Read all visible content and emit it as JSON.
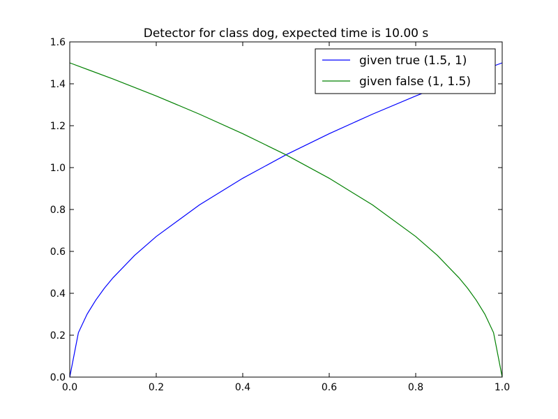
{
  "chart_data": {
    "type": "line",
    "title": "Detector for class dog, expected time is 10.00 s",
    "xlabel": "",
    "ylabel": "",
    "xlim": [
      0.0,
      1.0
    ],
    "ylim": [
      0.0,
      1.6
    ],
    "x_ticks": [
      "0.0",
      "0.2",
      "0.4",
      "0.6",
      "0.8",
      "1.0"
    ],
    "y_ticks": [
      "0.0",
      "0.2",
      "0.4",
      "0.6",
      "0.8",
      "1.0",
      "1.2",
      "1.4",
      "1.6"
    ],
    "grid": false,
    "legend_position": "top-right",
    "series": [
      {
        "name": "given true (1.5, 1)",
        "color": "#0000ff",
        "x": [
          0.0,
          0.02,
          0.04,
          0.06,
          0.08,
          0.1,
          0.15,
          0.2,
          0.3,
          0.4,
          0.5,
          0.6,
          0.7,
          0.8,
          0.9,
          1.0
        ],
        "y": [
          0.0,
          0.212,
          0.3,
          0.367,
          0.424,
          0.474,
          0.581,
          0.671,
          0.822,
          0.949,
          1.061,
          1.162,
          1.255,
          1.342,
          1.423,
          1.5
        ]
      },
      {
        "name": "given false (1, 1.5)",
        "color": "#008000",
        "x": [
          0.0,
          0.1,
          0.2,
          0.3,
          0.4,
          0.5,
          0.6,
          0.7,
          0.8,
          0.85,
          0.9,
          0.92,
          0.94,
          0.96,
          0.98,
          1.0
        ],
        "y": [
          1.5,
          1.423,
          1.342,
          1.255,
          1.162,
          1.061,
          0.949,
          0.822,
          0.671,
          0.581,
          0.474,
          0.424,
          0.367,
          0.3,
          0.212,
          0.0
        ]
      }
    ]
  }
}
